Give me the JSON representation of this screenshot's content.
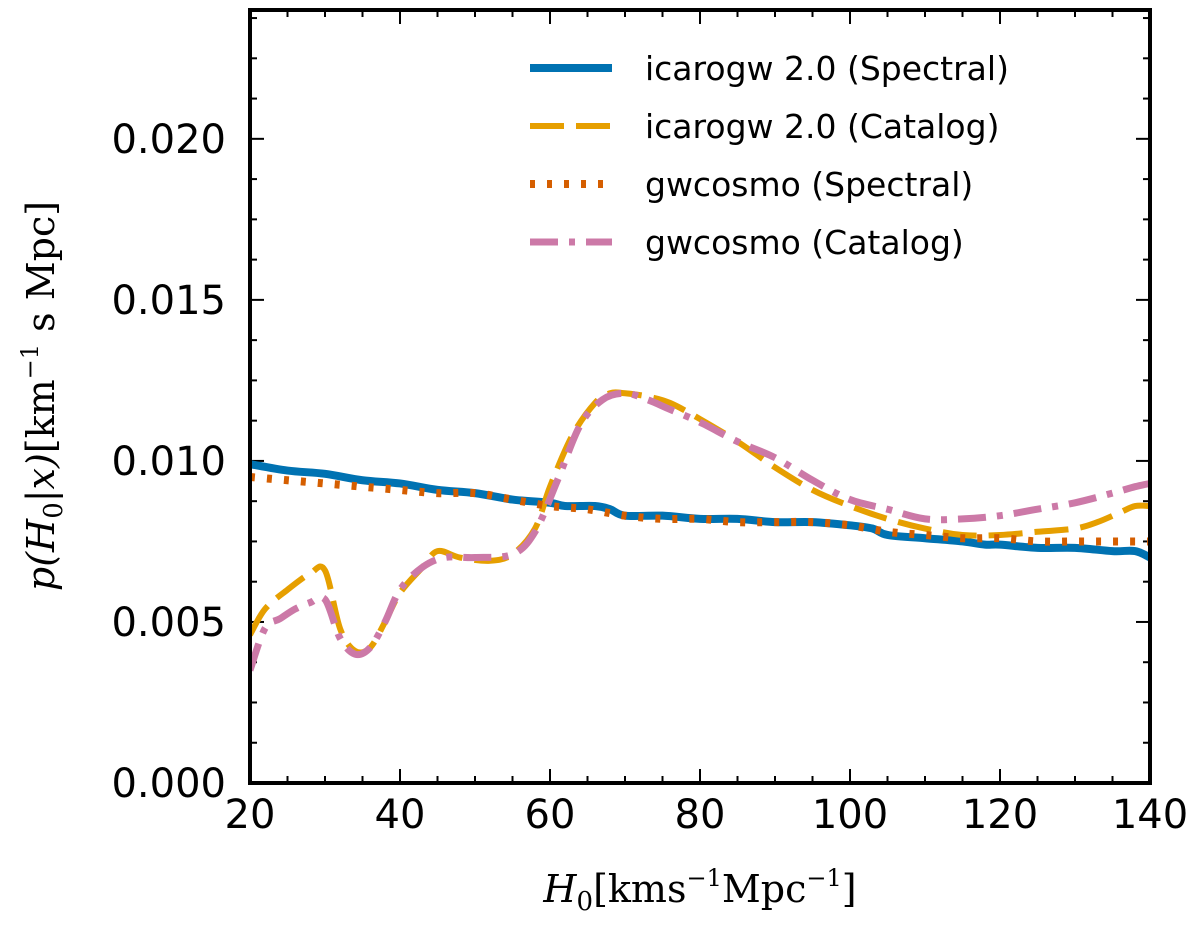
{
  "chart_data": {
    "type": "line",
    "title": "",
    "xlabel_parts": {
      "var": "H",
      "sub": "0",
      "unit_a": "[kms",
      "exp_a": "−1",
      "unit_b": "Mpc",
      "exp_b": "−1",
      "close": "]"
    },
    "ylabel_parts": {
      "pre": "p(",
      "var": "H",
      "sub": "0",
      "mid": "|x)",
      "unit_a": "[km",
      "exp_a": "−1",
      "unit_b": " s Mpc]"
    },
    "xlim": [
      20,
      140
    ],
    "ylim": [
      0.0,
      0.024
    ],
    "xticks": [
      20,
      40,
      60,
      80,
      100,
      120,
      140
    ],
    "xtick_labels": [
      "20",
      "40",
      "60",
      "80",
      "100",
      "120",
      "140"
    ],
    "yticks": [
      0.0,
      0.005,
      0.01,
      0.015,
      0.02
    ],
    "ytick_labels": [
      "0.000",
      "0.005",
      "0.010",
      "0.015",
      "0.020"
    ],
    "legend_position": "top-right",
    "series": [
      {
        "name": "icarogw 2.0 (Spectral)",
        "style": "solid",
        "color": "#0072b2",
        "x": [
          20,
          25,
          30,
          35,
          40,
          45,
          50,
          55,
          60,
          62,
          66,
          68,
          70,
          75,
          80,
          85,
          90,
          95,
          100,
          103,
          105,
          110,
          115,
          118,
          120,
          125,
          130,
          135,
          138,
          140
        ],
        "y": [
          0.0099,
          0.0097,
          0.0096,
          0.0094,
          0.0093,
          0.0091,
          0.009,
          0.0088,
          0.0087,
          0.0086,
          0.0086,
          0.0085,
          0.0083,
          0.0083,
          0.0082,
          0.0082,
          0.0081,
          0.0081,
          0.008,
          0.0079,
          0.0077,
          0.0076,
          0.0075,
          0.0074,
          0.0074,
          0.0073,
          0.0073,
          0.0072,
          0.0072,
          0.007
        ]
      },
      {
        "name": "icarogw 2.0 (Catalog)",
        "style": "dashed",
        "color": "#e69f00",
        "x": [
          20,
          22,
          25,
          28,
          30,
          32,
          34,
          36,
          38,
          40,
          43,
          45,
          48,
          52,
          55,
          58,
          60,
          63,
          66,
          68,
          70,
          73,
          76,
          80,
          85,
          90,
          95,
          100,
          105,
          110,
          115,
          120,
          125,
          130,
          133,
          136,
          138,
          140
        ],
        "y": [
          0.0046,
          0.0054,
          0.006,
          0.0065,
          0.0066,
          0.0048,
          0.0041,
          0.0042,
          0.005,
          0.0059,
          0.0067,
          0.0072,
          0.007,
          0.0069,
          0.0071,
          0.0079,
          0.0092,
          0.0108,
          0.0118,
          0.0121,
          0.0121,
          0.012,
          0.0118,
          0.0113,
          0.0106,
          0.0098,
          0.0091,
          0.0086,
          0.0082,
          0.0079,
          0.0077,
          0.0077,
          0.0078,
          0.0079,
          0.0081,
          0.0084,
          0.0086,
          0.0086
        ]
      },
      {
        "name": "gwcosmo (Spectral)",
        "style": "dotted",
        "color": "#d55e00",
        "x": [
          20,
          25,
          30,
          35,
          40,
          45,
          50,
          55,
          60,
          65,
          70,
          75,
          80,
          85,
          90,
          95,
          100,
          105,
          110,
          115,
          120,
          125,
          130,
          135,
          140
        ],
        "y": [
          0.0095,
          0.0094,
          0.0093,
          0.0092,
          0.0091,
          0.009,
          0.009,
          0.0088,
          0.0086,
          0.0085,
          0.0083,
          0.0082,
          0.0082,
          0.0081,
          0.0081,
          0.0081,
          0.008,
          0.0078,
          0.0077,
          0.0076,
          0.0076,
          0.0075,
          0.0075,
          0.0075,
          0.0075
        ]
      },
      {
        "name": "gwcosmo (Catalog)",
        "style": "dashdot",
        "color": "#cc79a7",
        "x": [
          20,
          22,
          24,
          26,
          28,
          30,
          32,
          34,
          36,
          38,
          40,
          43,
          46,
          50,
          55,
          58,
          61,
          64,
          67,
          70,
          73,
          76,
          80,
          85,
          90,
          95,
          100,
          105,
          110,
          115,
          120,
          125,
          130,
          135,
          138,
          140
        ],
        "y": [
          0.0035,
          0.0048,
          0.0051,
          0.0054,
          0.0056,
          0.0057,
          0.0045,
          0.004,
          0.0042,
          0.005,
          0.006,
          0.0067,
          0.007,
          0.007,
          0.0071,
          0.0078,
          0.0094,
          0.0111,
          0.0119,
          0.0121,
          0.0119,
          0.0116,
          0.0112,
          0.0106,
          0.0101,
          0.0094,
          0.0088,
          0.0085,
          0.0082,
          0.0082,
          0.0083,
          0.0085,
          0.0087,
          0.009,
          0.0092,
          0.0093
        ]
      }
    ]
  }
}
